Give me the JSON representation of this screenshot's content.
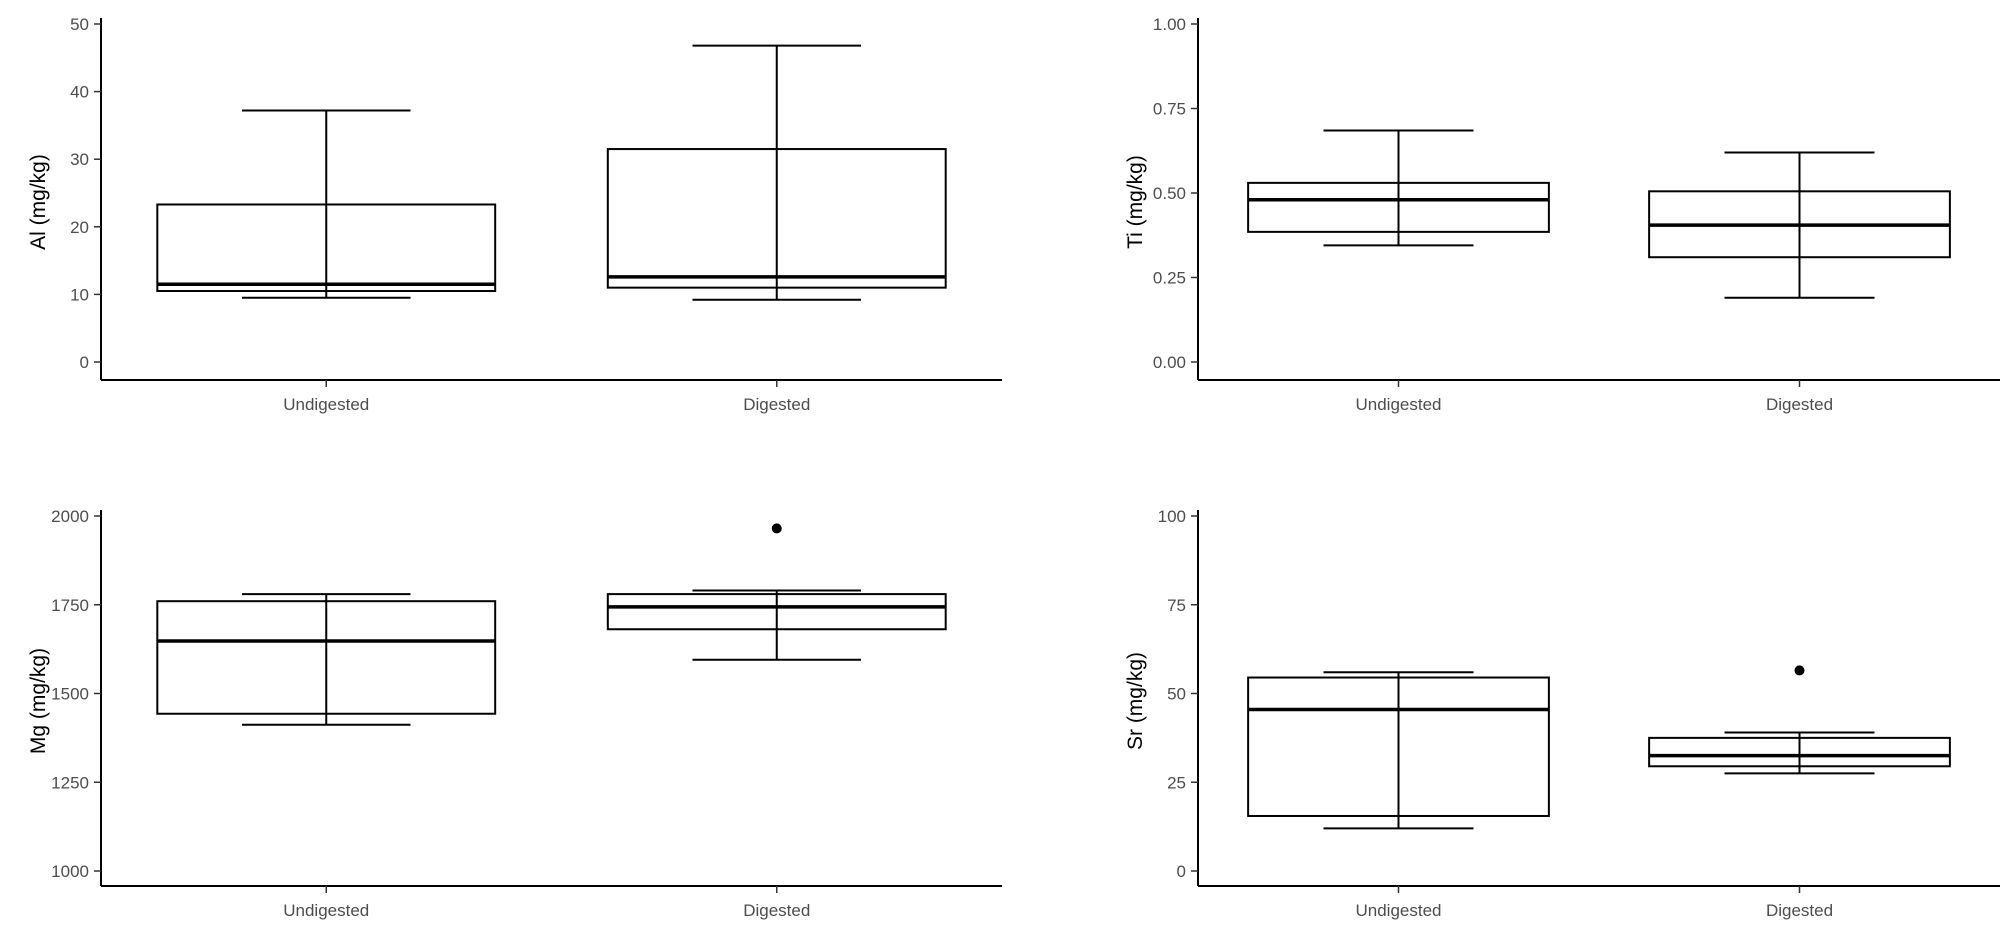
{
  "chart_data": [
    {
      "type": "boxplot",
      "title": "",
      "xlabel": "",
      "ylabel": "Al (mg/kg)",
      "ylim": [
        0,
        50
      ],
      "yticks": [
        0,
        10,
        20,
        30,
        40,
        50
      ],
      "grid": false,
      "categories": [
        "Undigested",
        "Digested"
      ],
      "boxes": [
        {
          "category": "Undigested",
          "whisker_low": 9.5,
          "q1": 10.5,
          "median": 11.5,
          "q3": 23.3,
          "whisker_high": 37.2,
          "outliers": []
        },
        {
          "category": "Digested",
          "whisker_low": 9.2,
          "q1": 11.0,
          "median": 12.6,
          "q3": 31.5,
          "whisker_high": 46.8,
          "outliers": []
        }
      ]
    },
    {
      "type": "boxplot",
      "title": "",
      "xlabel": "",
      "ylabel": "Ti (mg/kg)",
      "ylim": [
        0,
        1
      ],
      "yticks": [
        0,
        0.25,
        0.5,
        0.75,
        1
      ],
      "ytick_labels": [
        "0.00",
        "0.25",
        "0.50",
        "0.75",
        "1.00"
      ],
      "grid": false,
      "categories": [
        "Undigested",
        "Digested"
      ],
      "boxes": [
        {
          "category": "Undigested",
          "whisker_low": 0.345,
          "q1": 0.385,
          "median": 0.48,
          "q3": 0.53,
          "whisker_high": 0.685,
          "outliers": []
        },
        {
          "category": "Digested",
          "whisker_low": 0.19,
          "q1": 0.31,
          "median": 0.405,
          "q3": 0.505,
          "whisker_high": 0.62,
          "outliers": []
        }
      ]
    },
    {
      "type": "boxplot",
      "title": "",
      "xlabel": "",
      "ylabel": "Mg (mg/kg)",
      "ylim": [
        1000,
        2000
      ],
      "yticks": [
        1000,
        1250,
        1500,
        1750,
        2000
      ],
      "grid": false,
      "categories": [
        "Undigested",
        "Digested"
      ],
      "boxes": [
        {
          "category": "Undigested",
          "whisker_low": 1412,
          "q1": 1443,
          "median": 1648,
          "q3": 1760,
          "whisker_high": 1780,
          "outliers": []
        },
        {
          "category": "Digested",
          "whisker_low": 1595,
          "q1": 1681,
          "median": 1744,
          "q3": 1780,
          "whisker_high": 1790,
          "outliers": [
            1965
          ]
        }
      ]
    },
    {
      "type": "boxplot",
      "title": "",
      "xlabel": "",
      "ylabel": "Sr (mg/kg)",
      "ylim": [
        0,
        100
      ],
      "yticks": [
        0,
        25,
        50,
        75,
        100
      ],
      "grid": false,
      "categories": [
        "Undigested",
        "Digested"
      ],
      "boxes": [
        {
          "category": "Undigested",
          "whisker_low": 12,
          "q1": 15.5,
          "median": 45.5,
          "q3": 54.5,
          "whisker_high": 56,
          "outliers": []
        },
        {
          "category": "Digested",
          "whisker_low": 27.5,
          "q1": 29.5,
          "median": 32.5,
          "q3": 37.5,
          "whisker_high": 39,
          "outliers": [
            56.5
          ]
        }
      ]
    }
  ]
}
